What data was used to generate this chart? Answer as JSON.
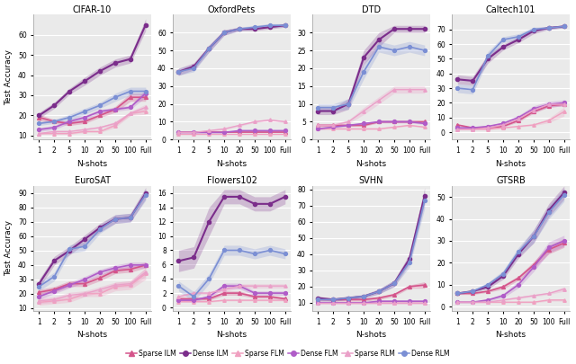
{
  "datasets": {
    "CIFAR-10": {
      "sparse_ilm": [
        19,
        17,
        16,
        17,
        20,
        23,
        29,
        29
      ],
      "sparse_ilm_std": [
        1.5,
        1,
        1,
        1,
        1,
        1.5,
        2,
        2
      ],
      "dense_ilm": [
        20,
        25,
        32,
        37,
        42,
        46,
        48,
        65
      ],
      "dense_ilm_std": [
        1.5,
        1.5,
        1.5,
        2,
        2,
        2,
        2,
        3
      ],
      "sparse_flm": [
        11,
        11,
        11,
        12,
        12,
        15,
        21,
        22
      ],
      "sparse_flm_std": [
        0.5,
        0.5,
        0.5,
        0.5,
        0.5,
        1,
        1,
        1.5
      ],
      "dense_flm": [
        13,
        14,
        17,
        19,
        22,
        23,
        24,
        31
      ],
      "dense_flm_std": [
        1,
        1,
        1,
        1,
        1,
        1,
        1,
        2
      ],
      "sparse_rlm": [
        11,
        12,
        12,
        13,
        14,
        16,
        21,
        24
      ],
      "sparse_rlm_std": [
        0.5,
        0.5,
        0.5,
        0.5,
        0.5,
        1,
        1,
        1.5
      ],
      "dense_rlm": [
        16,
        17,
        19,
        22,
        25,
        29,
        32,
        32
      ],
      "dense_rlm_std": [
        1,
        1,
        1.5,
        1.5,
        1.5,
        2,
        2,
        2
      ],
      "ylim": [
        8,
        70
      ],
      "yticks": [
        10,
        20,
        30,
        40,
        50,
        60
      ]
    },
    "OxfordPets": {
      "sparse_ilm": [
        4,
        4,
        4,
        4,
        4,
        4,
        4,
        4
      ],
      "sparse_ilm_std": [
        0.3,
        0.3,
        0.3,
        0.3,
        0.3,
        0.3,
        0.3,
        0.3
      ],
      "dense_ilm": [
        38,
        41,
        51,
        60,
        62,
        62,
        63,
        64
      ],
      "dense_ilm_std": [
        2,
        2,
        2,
        1.5,
        1,
        1,
        1,
        1
      ],
      "sparse_flm": [
        3,
        3,
        3,
        3,
        3,
        3,
        3,
        3
      ],
      "sparse_flm_std": [
        0.2,
        0.2,
        0.2,
        0.2,
        0.2,
        0.2,
        0.2,
        0.2
      ],
      "dense_flm": [
        4,
        4,
        4,
        4,
        5,
        5,
        5,
        5
      ],
      "dense_flm_std": [
        0.3,
        0.3,
        0.3,
        0.3,
        0.3,
        0.3,
        0.3,
        0.3
      ],
      "sparse_rlm": [
        4,
        4,
        5,
        6,
        8,
        10,
        11,
        10
      ],
      "sparse_rlm_std": [
        0.5,
        0.5,
        0.5,
        0.5,
        0.5,
        0.5,
        0.5,
        0.5
      ],
      "dense_rlm": [
        38,
        40,
        51,
        60,
        62,
        63,
        64,
        64
      ],
      "dense_rlm_std": [
        2,
        2,
        2,
        1.5,
        1,
        1,
        1,
        1
      ],
      "ylim": [
        0,
        70
      ],
      "yticks": [
        0,
        10,
        20,
        30,
        40,
        50,
        60
      ]
    },
    "DTD": {
      "sparse_ilm": [
        4,
        4,
        4,
        4,
        5,
        5,
        5,
        5
      ],
      "sparse_ilm_std": [
        0.3,
        0.3,
        0.3,
        0.3,
        0.3,
        0.3,
        0.3,
        0.3
      ],
      "dense_ilm": [
        8,
        8,
        10,
        23,
        28,
        31,
        31,
        31
      ],
      "dense_ilm_std": [
        1,
        1,
        1.5,
        2,
        2,
        1,
        1,
        1
      ],
      "sparse_flm": [
        3,
        3,
        3,
        3,
        3,
        3.5,
        4,
        3.5
      ],
      "sparse_flm_std": [
        0.2,
        0.2,
        0.2,
        0.2,
        0.2,
        0.2,
        0.2,
        0.2
      ],
      "dense_flm": [
        3,
        3.5,
        4,
        4.5,
        5,
        5,
        5,
        4.5
      ],
      "dense_flm_std": [
        0.3,
        0.3,
        0.3,
        0.3,
        0.3,
        0.3,
        0.3,
        0.3
      ],
      "sparse_rlm": [
        4,
        4,
        5,
        8,
        11,
        14,
        14,
        14
      ],
      "sparse_rlm_std": [
        0.5,
        0.5,
        0.5,
        1,
        1,
        1,
        1,
        1
      ],
      "dense_rlm": [
        9,
        9,
        10,
        19,
        26,
        25,
        26,
        25
      ],
      "dense_rlm_std": [
        1,
        1,
        1.5,
        2,
        1.5,
        1.5,
        1.5,
        1.5
      ],
      "ylim": [
        0,
        35
      ],
      "yticks": [
        0,
        5,
        10,
        15,
        20,
        25,
        30
      ]
    },
    "Caltech101": {
      "sparse_ilm": [
        5,
        3,
        3,
        4,
        8,
        14,
        18,
        19
      ],
      "sparse_ilm_std": [
        0.5,
        0.5,
        0.5,
        0.5,
        1,
        1,
        1,
        1
      ],
      "dense_ilm": [
        36,
        35,
        50,
        58,
        63,
        69,
        71,
        72
      ],
      "dense_ilm_std": [
        3,
        3,
        3,
        2,
        2,
        2,
        1,
        1
      ],
      "sparse_flm": [
        2,
        2,
        2,
        3,
        4,
        5,
        8,
        14
      ],
      "sparse_flm_std": [
        0.3,
        0.3,
        0.3,
        0.3,
        0.5,
        0.5,
        1.5,
        3
      ],
      "dense_flm": [
        3,
        3,
        4,
        6,
        10,
        16,
        19,
        20
      ],
      "dense_flm_std": [
        0.5,
        0.5,
        0.5,
        1,
        1.5,
        2,
        2,
        2
      ],
      "sparse_rlm": [
        2,
        2,
        3,
        5,
        9,
        15,
        19,
        19
      ],
      "sparse_rlm_std": [
        0.3,
        0.3,
        0.3,
        0.5,
        1,
        1,
        1,
        1
      ],
      "dense_rlm": [
        30,
        29,
        52,
        63,
        65,
        70,
        71,
        72
      ],
      "dense_rlm_std": [
        3,
        3,
        3,
        2,
        2,
        1.5,
        1,
        1
      ],
      "ylim": [
        -5,
        80
      ],
      "yticks": [
        0,
        10,
        20,
        30,
        40,
        50,
        60,
        70
      ]
    },
    "EuroSAT": {
      "sparse_ilm": [
        21,
        23,
        27,
        27,
        31,
        36,
        37,
        40
      ],
      "sparse_ilm_std": [
        2,
        2,
        2,
        2,
        2,
        2,
        2,
        2
      ],
      "dense_ilm": [
        27,
        43,
        50,
        58,
        66,
        72,
        73,
        90
      ],
      "dense_ilm_std": [
        3,
        3,
        3,
        3,
        3,
        3,
        3,
        4
      ],
      "sparse_flm": [
        14,
        15,
        16,
        20,
        20,
        25,
        26,
        34
      ],
      "sparse_flm_std": [
        2,
        2,
        2,
        2,
        2,
        3,
        3,
        4
      ],
      "dense_flm": [
        18,
        22,
        26,
        30,
        35,
        38,
        40,
        40
      ],
      "dense_flm_std": [
        2,
        2,
        2,
        2,
        2,
        2,
        2,
        2
      ],
      "sparse_rlm": [
        15,
        16,
        19,
        20,
        23,
        26,
        27,
        35
      ],
      "sparse_rlm_std": [
        2,
        2,
        2,
        2,
        2,
        2,
        2,
        3
      ],
      "dense_rlm": [
        25,
        32,
        51,
        53,
        65,
        72,
        73,
        89
      ],
      "dense_rlm_std": [
        3,
        3,
        3,
        3,
        3,
        3,
        3,
        4
      ],
      "ylim": [
        8,
        95
      ],
      "yticks": [
        10,
        20,
        30,
        40,
        50,
        60,
        70,
        80,
        90
      ]
    },
    "Flowers102": {
      "sparse_ilm": [
        1.2,
        1.2,
        1.2,
        2,
        2,
        1.5,
        1.5,
        1.2
      ],
      "sparse_ilm_std": [
        0.2,
        0.2,
        0.2,
        0.3,
        0.3,
        0.2,
        0.2,
        0.2
      ],
      "dense_ilm": [
        6.5,
        7,
        12,
        15.5,
        15.5,
        14.5,
        14.5,
        15.5
      ],
      "dense_ilm_std": [
        1.5,
        1.5,
        2,
        1,
        1,
        1,
        1,
        1
      ],
      "sparse_flm": [
        0.8,
        0.8,
        0.8,
        1,
        1,
        1,
        1,
        1
      ],
      "sparse_flm_std": [
        0.1,
        0.1,
        0.1,
        0.1,
        0.1,
        0.1,
        0.1,
        0.1
      ],
      "dense_flm": [
        1,
        1,
        1.5,
        3,
        3,
        2,
        2,
        2
      ],
      "dense_flm_std": [
        0.2,
        0.2,
        0.2,
        0.4,
        0.4,
        0.3,
        0.3,
        0.3
      ],
      "sparse_rlm": [
        1.5,
        2,
        2,
        2.5,
        3,
        3,
        3,
        3
      ],
      "sparse_rlm_std": [
        0.2,
        0.2,
        0.2,
        0.3,
        0.3,
        0.3,
        0.3,
        0.3
      ],
      "dense_rlm": [
        3,
        1.5,
        4,
        8,
        8,
        7.5,
        8,
        7.5
      ],
      "dense_rlm_std": [
        0.7,
        0.7,
        0.7,
        0.7,
        0.7,
        0.7,
        0.7,
        0.7
      ],
      "ylim": [
        -0.5,
        17
      ],
      "yticks": [
        0,
        2,
        4,
        6,
        8,
        10,
        12,
        14,
        16
      ]
    },
    "SVHN": {
      "sparse_ilm": [
        12,
        12,
        12,
        12,
        13,
        15,
        20,
        21
      ],
      "sparse_ilm_std": [
        1,
        1,
        1,
        1,
        1,
        1,
        1,
        2
      ],
      "dense_ilm": [
        13,
        12,
        13,
        14,
        17,
        22,
        37,
        76
      ],
      "dense_ilm_std": [
        1,
        1,
        1,
        1,
        1.5,
        2,
        3,
        5
      ],
      "sparse_flm": [
        10,
        10,
        10,
        10,
        10,
        10,
        10,
        10
      ],
      "sparse_flm_std": [
        0.5,
        0.5,
        0.5,
        0.5,
        0.5,
        0.5,
        0.5,
        0.5
      ],
      "dense_flm": [
        10,
        10,
        10,
        10,
        11,
        11,
        11,
        11
      ],
      "dense_flm_std": [
        0.5,
        0.5,
        0.5,
        0.5,
        0.5,
        0.5,
        0.5,
        0.5
      ],
      "sparse_rlm": [
        10,
        10,
        10,
        10,
        10,
        10,
        10,
        10
      ],
      "sparse_rlm_std": [
        0.5,
        0.5,
        0.5,
        0.5,
        0.5,
        0.5,
        0.5,
        0.5
      ],
      "dense_rlm": [
        12,
        12,
        13,
        14,
        17,
        22,
        35,
        73
      ],
      "dense_rlm_std": [
        1,
        1,
        1,
        1,
        1.5,
        2,
        3,
        5
      ],
      "ylim": [
        5,
        82
      ],
      "yticks": [
        10,
        20,
        30,
        40,
        50,
        60,
        70,
        80
      ]
    },
    "GTSRB": {
      "sparse_ilm": [
        6,
        6,
        7,
        9,
        13,
        19,
        26,
        29
      ],
      "sparse_ilm_std": [
        0.5,
        0.5,
        0.5,
        1,
        1,
        1.5,
        2,
        2
      ],
      "dense_ilm": [
        6,
        7,
        9,
        14,
        24,
        32,
        44,
        52
      ],
      "dense_ilm_std": [
        0.5,
        0.5,
        1,
        1.5,
        2,
        3,
        3,
        3
      ],
      "sparse_flm": [
        2,
        2,
        2,
        2,
        2,
        2,
        3,
        3
      ],
      "sparse_flm_std": [
        0.3,
        0.3,
        0.3,
        0.3,
        0.3,
        0.3,
        0.5,
        0.5
      ],
      "dense_flm": [
        2,
        2,
        3,
        5,
        10,
        18,
        27,
        30
      ],
      "dense_flm_std": [
        0.3,
        0.3,
        0.5,
        1,
        1.5,
        2,
        2.5,
        2.5
      ],
      "sparse_rlm": [
        2,
        2,
        2,
        3,
        4,
        5,
        6,
        8
      ],
      "sparse_rlm_std": [
        0.3,
        0.3,
        0.3,
        0.3,
        0.5,
        0.5,
        0.5,
        1
      ],
      "dense_rlm": [
        6,
        7,
        10,
        15,
        25,
        32,
        43,
        51
      ],
      "dense_rlm_std": [
        0.5,
        0.5,
        1,
        1.5,
        2,
        3,
        3,
        3
      ],
      "ylim": [
        -2,
        55
      ],
      "yticks": [
        0,
        10,
        20,
        30,
        40,
        50
      ]
    }
  },
  "x_labels": [
    "1",
    "2",
    "5",
    "10",
    "20",
    "50",
    "100",
    "Full"
  ],
  "colors": {
    "sparse_ilm": "#D4548A",
    "dense_ilm": "#7B2D8B",
    "sparse_flm": "#F0A0C0",
    "dense_flm": "#B05CC8",
    "sparse_rlm": "#EAA0C8",
    "dense_rlm": "#7B8FD4"
  },
  "legend": [
    {
      "label": "Sparse ILM",
      "color": "#D4548A",
      "marker": "^"
    },
    {
      "label": "Dense ILM",
      "color": "#7B2D8B",
      "marker": "o"
    },
    {
      "label": "Sparse FLM",
      "color": "#F0A0C0",
      "marker": "^"
    },
    {
      "label": "Dense FLM",
      "color": "#B05CC8",
      "marker": "o"
    },
    {
      "label": "Sparse RLM",
      "color": "#EAA0C8",
      "marker": "^"
    },
    {
      "label": "Dense RLM",
      "color": "#7B8FD4",
      "marker": "o"
    }
  ],
  "row1": [
    "CIFAR-10",
    "OxfordPets",
    "DTD",
    "Caltech101"
  ],
  "row2": [
    "EuroSAT",
    "Flowers102",
    "SVHN",
    "GTSRB"
  ],
  "ylabel": "Test Accuracy",
  "xlabel": "N-shots",
  "background_color": "#EAEAEA",
  "grid_color": "#FFFFFF"
}
